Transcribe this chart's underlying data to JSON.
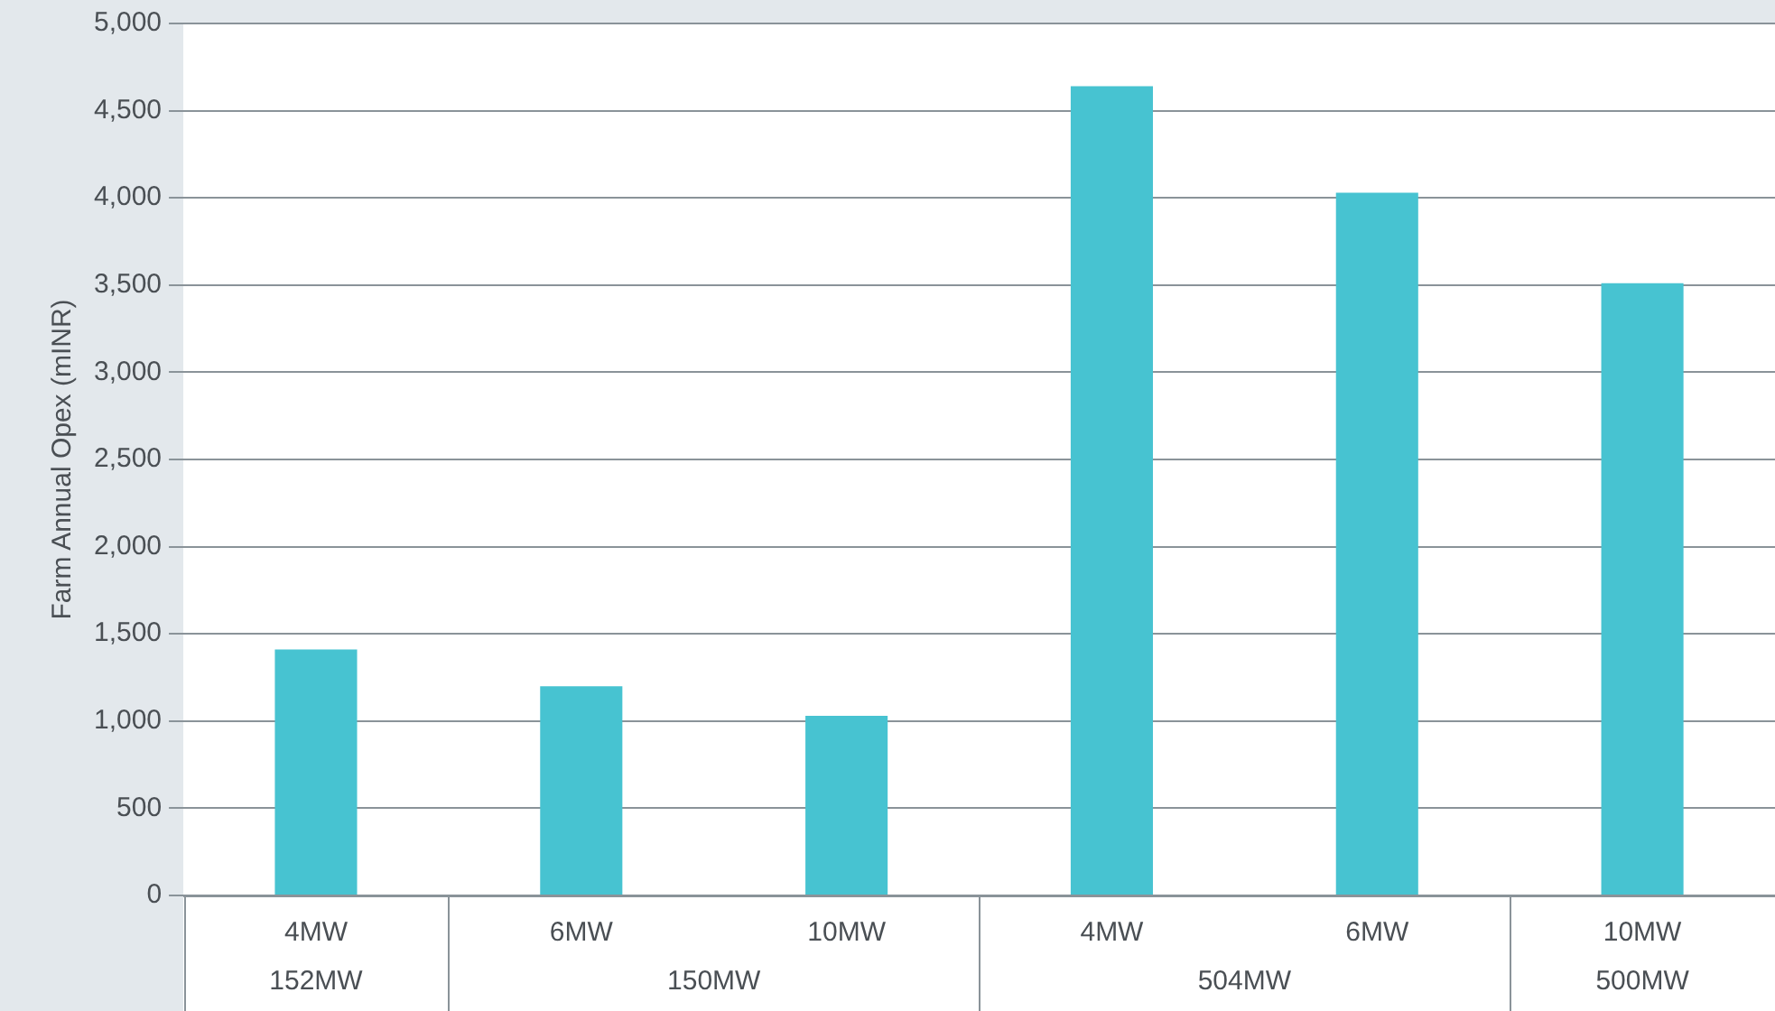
{
  "chart_data": {
    "type": "bar",
    "ylabel": "Farm Annual Opex (mINR)",
    "categories": [
      "4MW",
      "6MW",
      "10MW",
      "4MW",
      "6MW",
      "10MW"
    ],
    "values": [
      1410,
      1200,
      1030,
      4640,
      4030,
      3510
    ],
    "color": "#47c3d1",
    "ylim": [
      0,
      5000
    ],
    "yticks": [
      0,
      500,
      {
        "value": 1000,
        "label": "1,000"
      },
      {
        "value": 1500,
        "label": "1,500"
      },
      {
        "value": 2000,
        "label": "2,000"
      },
      {
        "value": 2500,
        "label": "2,500"
      },
      {
        "value": 3000,
        "label": "3,000"
      },
      {
        "value": 3500,
        "label": "3,500"
      },
      {
        "value": 4000,
        "label": "4,000"
      },
      {
        "value": 4500,
        "label": "4,500"
      },
      {
        "value": 5000,
        "label": "5,000"
      }
    ],
    "grid": "y",
    "legend": false,
    "annotations": [
      "152MW",
      "150MW",
      "504MW",
      "500MW"
    ]
  }
}
